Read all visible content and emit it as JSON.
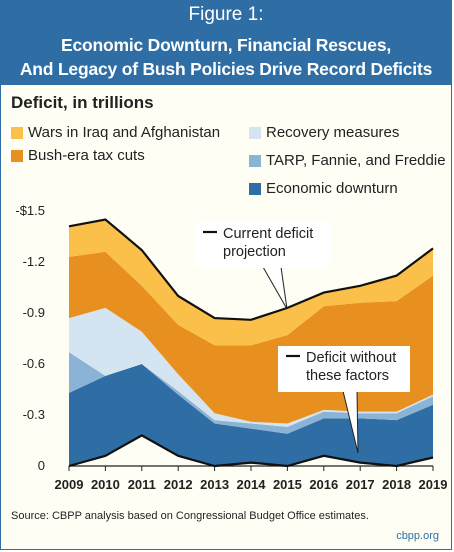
{
  "figure_label": "Figure 1:",
  "title_line1": "Economic Downturn, Financial Rescues,",
  "title_line2": "And Legacy of Bush Policies Drive Record Deficits",
  "source": "Source: CBPP analysis based on Congressional Budget Office estimates.",
  "site": "cbpp.org",
  "colors": {
    "header": "#2f6ea4",
    "background": "#fffef5",
    "wars": "#fbc04a",
    "tax_cuts": "#e8901f",
    "recovery": "#d5e4f1",
    "tarp": "#8ab3d6",
    "downturn": "#2f6ea4",
    "line": "#111111"
  },
  "chart_data": {
    "type": "area",
    "stacked": true,
    "ylabel": "Deficit, in trillions",
    "y_ticks": [
      "-$1.5",
      "-1.2",
      "-0.9",
      "-0.6",
      "-0.3",
      "0"
    ],
    "y_tick_values": [
      1.5,
      1.2,
      0.9,
      0.6,
      0.3,
      0
    ],
    "ylim": [
      0,
      1.5
    ],
    "x": [
      "2009",
      "2010",
      "2011",
      "2012",
      "2013",
      "2014",
      "2015",
      "2016",
      "2017",
      "2018",
      "2019"
    ],
    "legend": [
      {
        "label": "Wars in Iraq and Afghanistan",
        "color_key": "wars"
      },
      {
        "label": "Bush-era tax cuts",
        "color_key": "tax_cuts"
      },
      {
        "label": "Recovery measures",
        "color_key": "recovery"
      },
      {
        "label": "TARP, Fannie, and Freddie",
        "color_key": "tarp"
      },
      {
        "label": "Economic downturn",
        "color_key": "downturn"
      }
    ],
    "baseline": {
      "name": "Deficit without these factors",
      "values": [
        0.0,
        0.06,
        0.18,
        0.06,
        0.0,
        0.02,
        0.0,
        0.06,
        0.02,
        0.0,
        0.05
      ]
    },
    "series": [
      {
        "name": "Economic downturn",
        "color_key": "downturn",
        "values": [
          0.43,
          0.47,
          0.42,
          0.36,
          0.25,
          0.2,
          0.19,
          0.22,
          0.26,
          0.27,
          0.31
        ]
      },
      {
        "name": "TARP, Fannie, and Freddie",
        "color_key": "tarp",
        "values": [
          0.24,
          0.0,
          0.0,
          0.02,
          0.02,
          0.03,
          0.04,
          0.04,
          0.03,
          0.04,
          0.05
        ]
      },
      {
        "name": "Recovery measures",
        "color_key": "recovery",
        "values": [
          0.2,
          0.4,
          0.19,
          0.1,
          0.04,
          0.01,
          0.02,
          0.01,
          0.01,
          0.01,
          0.01
        ]
      },
      {
        "name": "Bush-era tax cuts",
        "color_key": "tax_cuts",
        "values": [
          0.36,
          0.33,
          0.27,
          0.29,
          0.4,
          0.45,
          0.52,
          0.61,
          0.64,
          0.65,
          0.7
        ]
      },
      {
        "name": "Wars in Iraq and Afghanistan",
        "color_key": "wars",
        "values": [
          0.18,
          0.19,
          0.21,
          0.17,
          0.16,
          0.15,
          0.16,
          0.08,
          0.1,
          0.15,
          0.16
        ]
      }
    ],
    "annotations": [
      {
        "lines": [
          "Current deficit",
          "projection"
        ],
        "target": "total"
      },
      {
        "lines": [
          "Deficit without",
          "these factors"
        ],
        "target": "baseline"
      }
    ]
  }
}
